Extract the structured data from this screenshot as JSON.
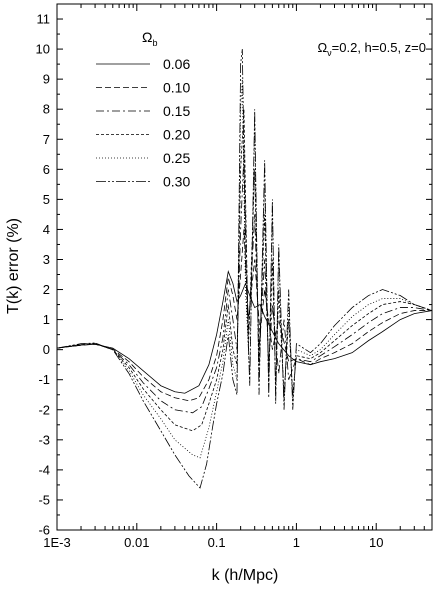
{
  "chart_data": {
    "type": "line",
    "title": "",
    "xlabel": "k (h/Mpc)",
    "ylabel": "T(k) error (%)",
    "x_scale": "log",
    "xlim": [
      0.001,
      50
    ],
    "ylim": [
      -6,
      11.5
    ],
    "x_ticks": [
      {
        "value": 0.001,
        "label": "1E-3"
      },
      {
        "value": 0.01,
        "label": "0.01"
      },
      {
        "value": 0.1,
        "label": "0.1"
      },
      {
        "value": 1,
        "label": "1"
      },
      {
        "value": 10,
        "label": "10"
      }
    ],
    "y_ticks": [
      -6,
      -5,
      -4,
      -3,
      -2,
      -1,
      0,
      1,
      2,
      3,
      4,
      5,
      6,
      7,
      8,
      9,
      10,
      11
    ],
    "grid": false,
    "legend": {
      "title_symbol": "Ω",
      "title_subscript": "b",
      "placement": "top-left"
    },
    "annotation": {
      "parts": [
        {
          "text": "Ω",
          "sub": false
        },
        {
          "text": "ν",
          "sub": true
        },
        {
          "text": "=0.2, h=0.5, z=0",
          "sub": false
        }
      ]
    },
    "series": [
      {
        "name": "0.06",
        "dash": "",
        "values": [
          [
            0.001,
            0.05
          ],
          [
            0.002,
            0.15
          ],
          [
            0.003,
            0.18
          ],
          [
            0.005,
            0.05
          ],
          [
            0.008,
            -0.3
          ],
          [
            0.012,
            -0.7
          ],
          [
            0.02,
            -1.2
          ],
          [
            0.03,
            -1.4
          ],
          [
            0.04,
            -1.45
          ],
          [
            0.06,
            -1.2
          ],
          [
            0.08,
            -0.5
          ],
          [
            0.1,
            0.5
          ],
          [
            0.12,
            1.6
          ],
          [
            0.14,
            2.6
          ],
          [
            0.16,
            2.2
          ],
          [
            0.18,
            1.6
          ],
          [
            0.2,
            1.8
          ],
          [
            0.23,
            2.2
          ],
          [
            0.26,
            1.8
          ],
          [
            0.3,
            1.4
          ],
          [
            0.35,
            1.5
          ],
          [
            0.4,
            1.1
          ],
          [
            0.5,
            0.6
          ],
          [
            0.6,
            0.2
          ],
          [
            0.8,
            -0.2
          ],
          [
            1.0,
            -0.4
          ],
          [
            1.5,
            -0.5
          ],
          [
            2.0,
            -0.4
          ],
          [
            3.0,
            -0.3
          ],
          [
            5.0,
            -0.1
          ],
          [
            8.0,
            0.3
          ],
          [
            12,
            0.6
          ],
          [
            20,
            1.0
          ],
          [
            30,
            1.2
          ],
          [
            50,
            1.3
          ]
        ]
      },
      {
        "name": "0.10",
        "dash": "6,3",
        "values": [
          [
            0.001,
            0.05
          ],
          [
            0.002,
            0.15
          ],
          [
            0.003,
            0.18
          ],
          [
            0.005,
            0.02
          ],
          [
            0.008,
            -0.4
          ],
          [
            0.012,
            -0.9
          ],
          [
            0.02,
            -1.4
          ],
          [
            0.03,
            -1.6
          ],
          [
            0.045,
            -1.7
          ],
          [
            0.06,
            -1.6
          ],
          [
            0.08,
            -1.0
          ],
          [
            0.1,
            -0.2
          ],
          [
            0.12,
            1.0
          ],
          [
            0.14,
            2.4
          ],
          [
            0.16,
            1.8
          ],
          [
            0.18,
            1.0
          ],
          [
            0.2,
            2.5
          ],
          [
            0.22,
            4.0
          ],
          [
            0.25,
            1.0
          ],
          [
            0.3,
            3.0
          ],
          [
            0.35,
            0.5
          ],
          [
            0.4,
            2.0
          ],
          [
            0.5,
            0.0
          ],
          [
            0.6,
            1.0
          ],
          [
            0.8,
            -0.4
          ],
          [
            1.0,
            -0.3
          ],
          [
            1.5,
            -0.5
          ],
          [
            2.0,
            -0.3
          ],
          [
            3.0,
            -0.1
          ],
          [
            5.0,
            0.2
          ],
          [
            8.0,
            0.6
          ],
          [
            12,
            0.9
          ],
          [
            20,
            1.2
          ],
          [
            30,
            1.3
          ],
          [
            50,
            1.3
          ]
        ]
      },
      {
        "name": "0.15",
        "dash": "8,3,2,3",
        "values": [
          [
            0.001,
            0.05
          ],
          [
            0.002,
            0.15
          ],
          [
            0.003,
            0.2
          ],
          [
            0.005,
            0.0
          ],
          [
            0.008,
            -0.5
          ],
          [
            0.012,
            -1.1
          ],
          [
            0.02,
            -1.7
          ],
          [
            0.03,
            -2.0
          ],
          [
            0.05,
            -2.1
          ],
          [
            0.065,
            -1.9
          ],
          [
            0.08,
            -1.3
          ],
          [
            0.1,
            -0.6
          ],
          [
            0.12,
            0.4
          ],
          [
            0.14,
            2.0
          ],
          [
            0.16,
            1.0
          ],
          [
            0.18,
            0.0
          ],
          [
            0.2,
            4.0
          ],
          [
            0.22,
            6.5
          ],
          [
            0.25,
            0.5
          ],
          [
            0.3,
            4.5
          ],
          [
            0.34,
            0.0
          ],
          [
            0.4,
            3.0
          ],
          [
            0.45,
            -0.5
          ],
          [
            0.5,
            1.5
          ],
          [
            0.6,
            -0.8
          ],
          [
            0.7,
            1.0
          ],
          [
            0.8,
            -1.0
          ],
          [
            1.0,
            -0.3
          ],
          [
            1.5,
            -0.4
          ],
          [
            2.0,
            -0.2
          ],
          [
            3.0,
            0.1
          ],
          [
            5.0,
            0.5
          ],
          [
            8.0,
            0.9
          ],
          [
            12,
            1.2
          ],
          [
            20,
            1.4
          ],
          [
            30,
            1.4
          ],
          [
            50,
            1.3
          ]
        ]
      },
      {
        "name": "0.20",
        "dash": "3,2",
        "values": [
          [
            0.001,
            0.05
          ],
          [
            0.002,
            0.18
          ],
          [
            0.003,
            0.2
          ],
          [
            0.005,
            0.0
          ],
          [
            0.008,
            -0.6
          ],
          [
            0.012,
            -1.3
          ],
          [
            0.02,
            -2.0
          ],
          [
            0.03,
            -2.5
          ],
          [
            0.05,
            -2.7
          ],
          [
            0.065,
            -2.5
          ],
          [
            0.08,
            -1.8
          ],
          [
            0.1,
            -1.0
          ],
          [
            0.12,
            0.0
          ],
          [
            0.14,
            1.5
          ],
          [
            0.16,
            0.0
          ],
          [
            0.18,
            -0.5
          ],
          [
            0.2,
            6.0
          ],
          [
            0.22,
            8.0
          ],
          [
            0.25,
            0.0
          ],
          [
            0.3,
            6.0
          ],
          [
            0.34,
            -0.5
          ],
          [
            0.4,
            4.5
          ],
          [
            0.45,
            -1.0
          ],
          [
            0.5,
            3.0
          ],
          [
            0.55,
            -1.2
          ],
          [
            0.6,
            2.0
          ],
          [
            0.7,
            -1.5
          ],
          [
            0.8,
            1.0
          ],
          [
            0.9,
            -1.5
          ],
          [
            1.0,
            -0.2
          ],
          [
            1.5,
            -0.3
          ],
          [
            2.0,
            -0.1
          ],
          [
            3.0,
            0.3
          ],
          [
            5.0,
            0.8
          ],
          [
            8.0,
            1.2
          ],
          [
            12,
            1.5
          ],
          [
            20,
            1.6
          ],
          [
            30,
            1.5
          ],
          [
            50,
            1.3
          ]
        ]
      },
      {
        "name": "0.25",
        "dash": "1,2",
        "values": [
          [
            0.001,
            0.05
          ],
          [
            0.002,
            0.18
          ],
          [
            0.003,
            0.22
          ],
          [
            0.005,
            0.0
          ],
          [
            0.008,
            -0.7
          ],
          [
            0.012,
            -1.5
          ],
          [
            0.02,
            -2.3
          ],
          [
            0.03,
            -3.0
          ],
          [
            0.05,
            -3.5
          ],
          [
            0.062,
            -3.6
          ],
          [
            0.08,
            -2.6
          ],
          [
            0.1,
            -1.4
          ],
          [
            0.12,
            -0.4
          ],
          [
            0.14,
            1.0
          ],
          [
            0.16,
            -0.5
          ],
          [
            0.18,
            -1.0
          ],
          [
            0.2,
            8.0
          ],
          [
            0.21,
            9.0
          ],
          [
            0.23,
            2.0
          ],
          [
            0.26,
            -0.8
          ],
          [
            0.3,
            7.5
          ],
          [
            0.34,
            -1.0
          ],
          [
            0.4,
            5.5
          ],
          [
            0.45,
            -1.2
          ],
          [
            0.5,
            4.5
          ],
          [
            0.55,
            -1.5
          ],
          [
            0.6,
            3.0
          ],
          [
            0.7,
            -1.8
          ],
          [
            0.8,
            1.5
          ],
          [
            0.9,
            -1.8
          ],
          [
            1.0,
            0.0
          ],
          [
            1.5,
            -0.2
          ],
          [
            2.0,
            0.0
          ],
          [
            3.0,
            0.5
          ],
          [
            5.0,
            1.1
          ],
          [
            8.0,
            1.5
          ],
          [
            12,
            1.7
          ],
          [
            20,
            1.7
          ],
          [
            30,
            1.5
          ],
          [
            50,
            1.3
          ]
        ]
      },
      {
        "name": "0.30",
        "dash": "10,2,2,2,2,2",
        "values": [
          [
            0.001,
            0.05
          ],
          [
            0.002,
            0.2
          ],
          [
            0.003,
            0.22
          ],
          [
            0.005,
            0.0
          ],
          [
            0.008,
            -0.8
          ],
          [
            0.012,
            -1.7
          ],
          [
            0.02,
            -2.7
          ],
          [
            0.03,
            -3.5
          ],
          [
            0.045,
            -4.2
          ],
          [
            0.062,
            -4.6
          ],
          [
            0.075,
            -3.8
          ],
          [
            0.09,
            -2.5
          ],
          [
            0.1,
            -1.8
          ],
          [
            0.12,
            -0.8
          ],
          [
            0.14,
            0.5
          ],
          [
            0.16,
            -1.0
          ],
          [
            0.18,
            -1.5
          ],
          [
            0.2,
            9.5
          ],
          [
            0.21,
            10.0
          ],
          [
            0.23,
            3.0
          ],
          [
            0.26,
            -1.2
          ],
          [
            0.3,
            8.0
          ],
          [
            0.34,
            -1.5
          ],
          [
            0.4,
            6.3
          ],
          [
            0.45,
            -1.6
          ],
          [
            0.5,
            5.0
          ],
          [
            0.55,
            -1.8
          ],
          [
            0.6,
            3.5
          ],
          [
            0.7,
            -2.0
          ],
          [
            0.8,
            2.0
          ],
          [
            0.9,
            -2.0
          ],
          [
            1.0,
            0.2
          ],
          [
            1.5,
            -0.1
          ],
          [
            2.0,
            0.2
          ],
          [
            3.0,
            0.8
          ],
          [
            5.0,
            1.4
          ],
          [
            8.0,
            1.8
          ],
          [
            12,
            2.0
          ],
          [
            20,
            1.8
          ],
          [
            30,
            1.5
          ],
          [
            50,
            1.3
          ]
        ]
      }
    ]
  }
}
